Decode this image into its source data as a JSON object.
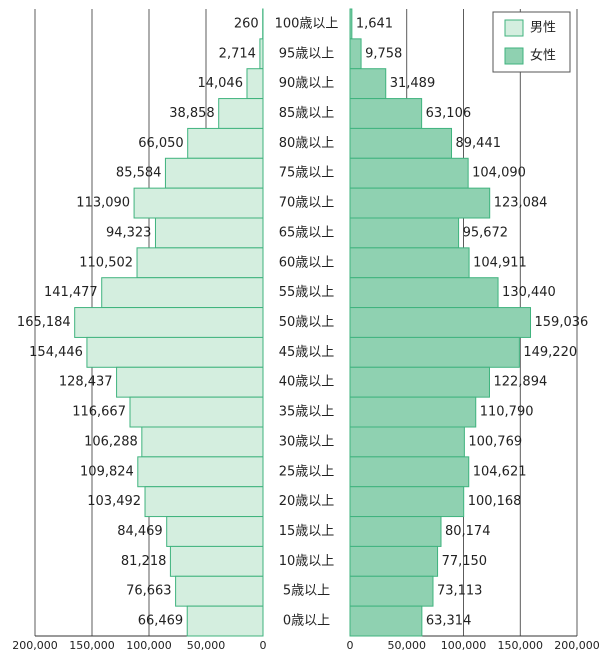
{
  "chart_data": {
    "type": "population-pyramid",
    "categories": [
      "100歳以上",
      "95歳以上",
      "90歳以上",
      "85歳以上",
      "80歳以上",
      "75歳以上",
      "70歳以上",
      "65歳以上",
      "60歳以上",
      "55歳以上",
      "50歳以上",
      "45歳以上",
      "40歳以上",
      "35歳以上",
      "30歳以上",
      "25歳以上",
      "20歳以上",
      "15歳以上",
      "10歳以上",
      "5歳以上",
      "0歳以上"
    ],
    "series": [
      {
        "name": "男性",
        "color": "#d4eedf",
        "values": [
          260,
          2714,
          14046,
          38858,
          66050,
          85584,
          113090,
          94323,
          110502,
          141477,
          165184,
          154446,
          128437,
          116667,
          106288,
          109824,
          103492,
          84469,
          81218,
          76663,
          66469
        ],
        "value_labels": [
          "260",
          "2,714",
          "14,046",
          "38,858",
          "66,050",
          "85,584",
          "113,090",
          "94,323",
          "110,502",
          "141,477",
          "165,184",
          "154,446",
          "128,437",
          "116,667",
          "106,288",
          "109,824",
          "103,492",
          "84,469",
          "81,218",
          "76,663",
          "66,469"
        ]
      },
      {
        "name": "女性",
        "color": "#8fd1b1",
        "values": [
          1641,
          9758,
          31489,
          63106,
          89441,
          104090,
          123084,
          95672,
          104911,
          130440,
          159036,
          149220,
          122894,
          110790,
          100769,
          104621,
          100168,
          80174,
          77150,
          73113,
          63314
        ],
        "value_labels": [
          "1,641",
          "9,758",
          "31,489",
          "63,106",
          "89,441",
          "104,090",
          "123,084",
          "95,672",
          "104,911",
          "130,440",
          "159,036",
          "149,220",
          "122,894",
          "110,790",
          "100,769",
          "104,621",
          "100,168",
          "80,174",
          "77,150",
          "73,113",
          "63,314"
        ]
      }
    ],
    "xlim": [
      0,
      200000
    ],
    "xticks": [
      0,
      {
        "value": 50000,
        "label": "50,000"
      },
      {
        "value": 100000,
        "label": "100,000"
      },
      {
        "value": 150000,
        "label": "150,000"
      },
      {
        "value": 200000,
        "label": "200,000"
      }
    ],
    "grid": true,
    "legend": "top-right"
  }
}
